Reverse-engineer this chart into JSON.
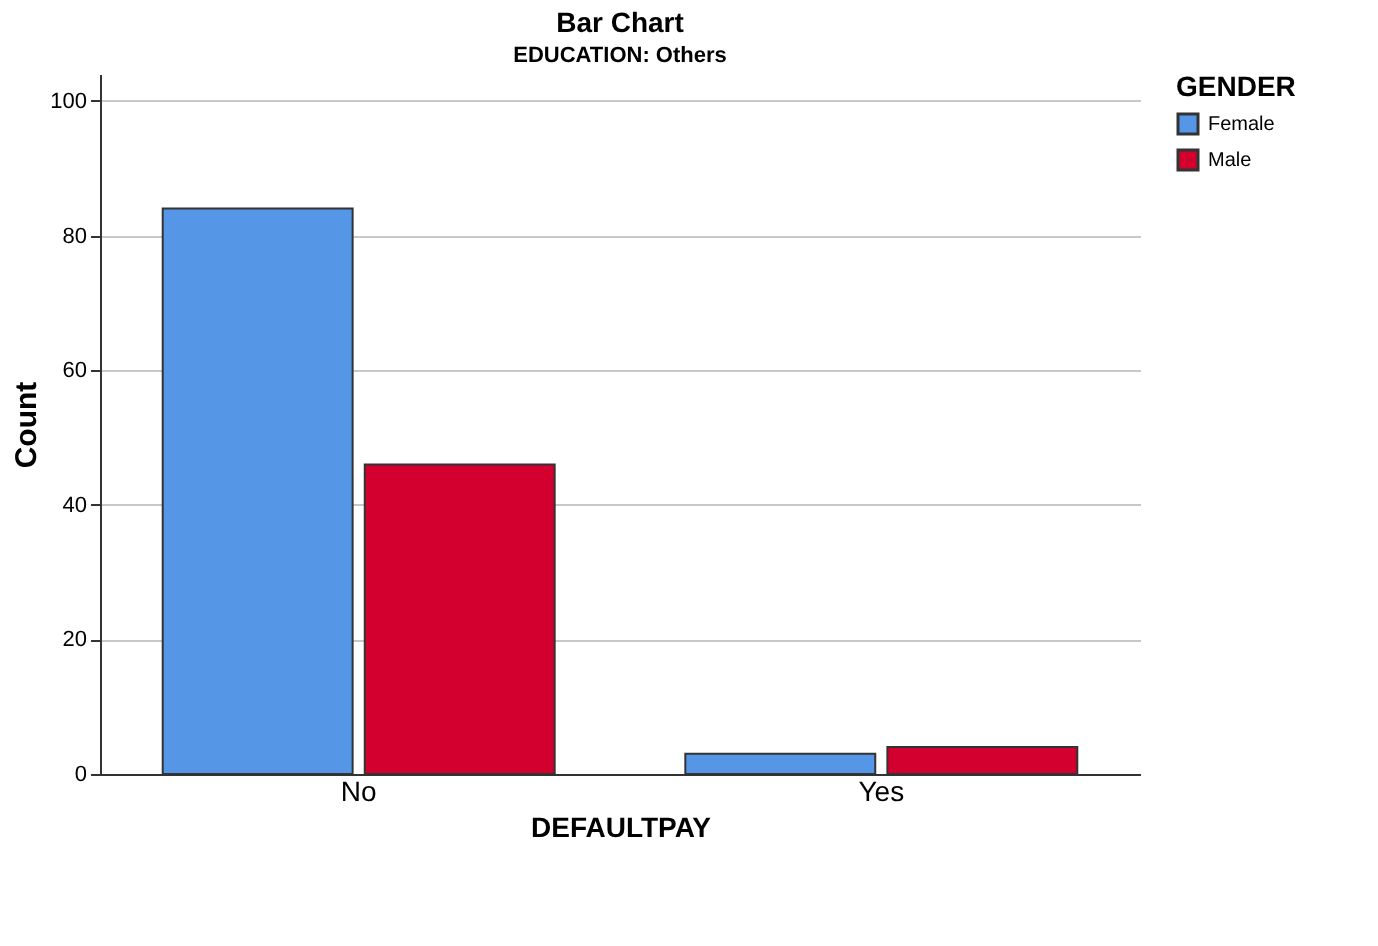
{
  "chart_data": {
    "type": "bar",
    "title": "Bar Chart",
    "subtitle": "EDUCATION: Others",
    "xlabel": "DEFAULTPAY",
    "ylabel": "Count",
    "legend_title": "GENDER",
    "categories": [
      "No",
      "Yes"
    ],
    "series": [
      {
        "name": "Female",
        "color": "#5596e6",
        "values": [
          84,
          3
        ]
      },
      {
        "name": "Male",
        "color": "#d3002f",
        "values": [
          46,
          4
        ]
      }
    ],
    "ylim": [
      0,
      104
    ],
    "yticks": [
      0,
      20,
      40,
      60,
      80,
      100
    ],
    "grid": "y",
    "legend": "top right"
  }
}
